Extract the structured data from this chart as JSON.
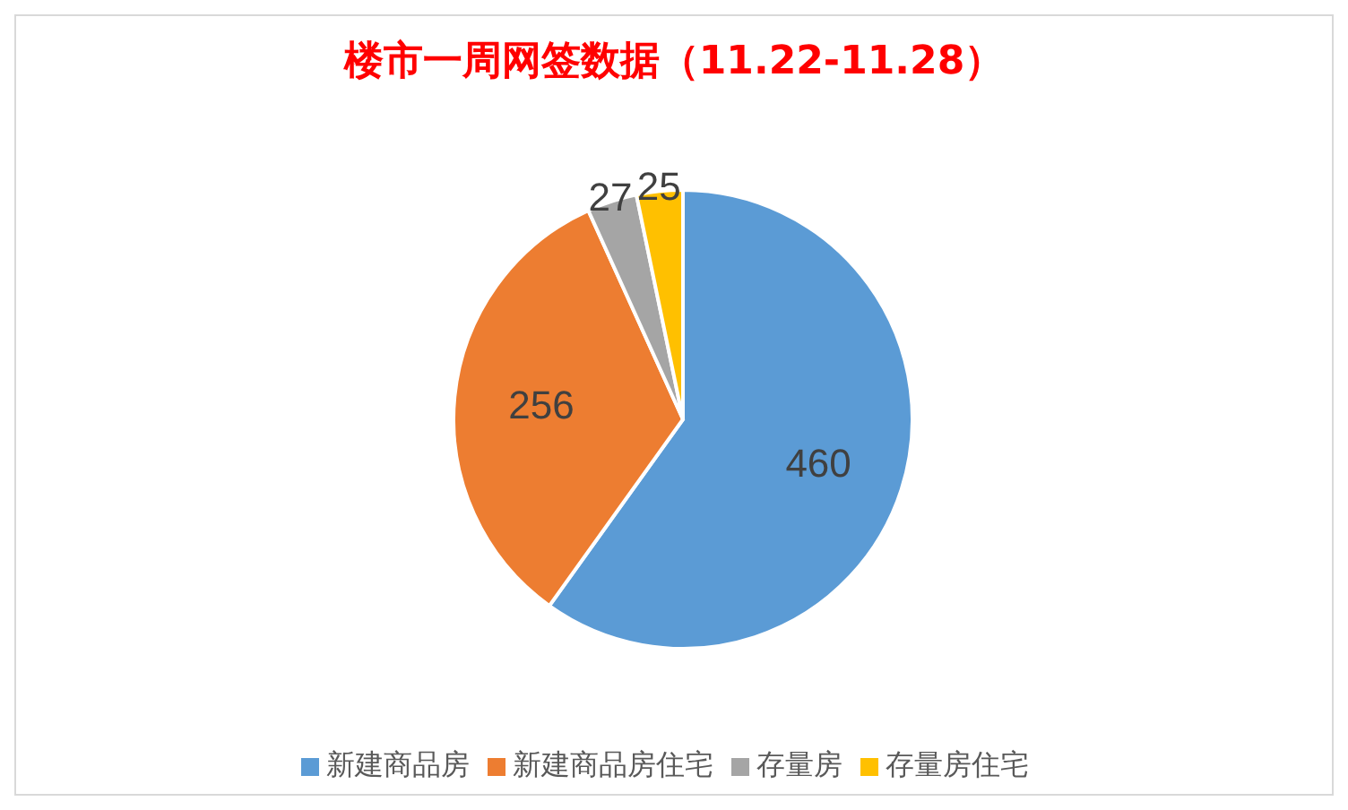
{
  "chart_data": {
    "type": "pie",
    "title": "楼市一周网签数据（11.22-11.28）",
    "categories": [
      "新建商品房",
      "新建商品房住宅",
      "存量房",
      "存量房住宅"
    ],
    "values": [
      460,
      256,
      27,
      25
    ],
    "colors": [
      "#5b9bd5",
      "#ed7d31",
      "#a5a5a5",
      "#ffc000"
    ],
    "data_labels": true,
    "legend": "bottom"
  }
}
